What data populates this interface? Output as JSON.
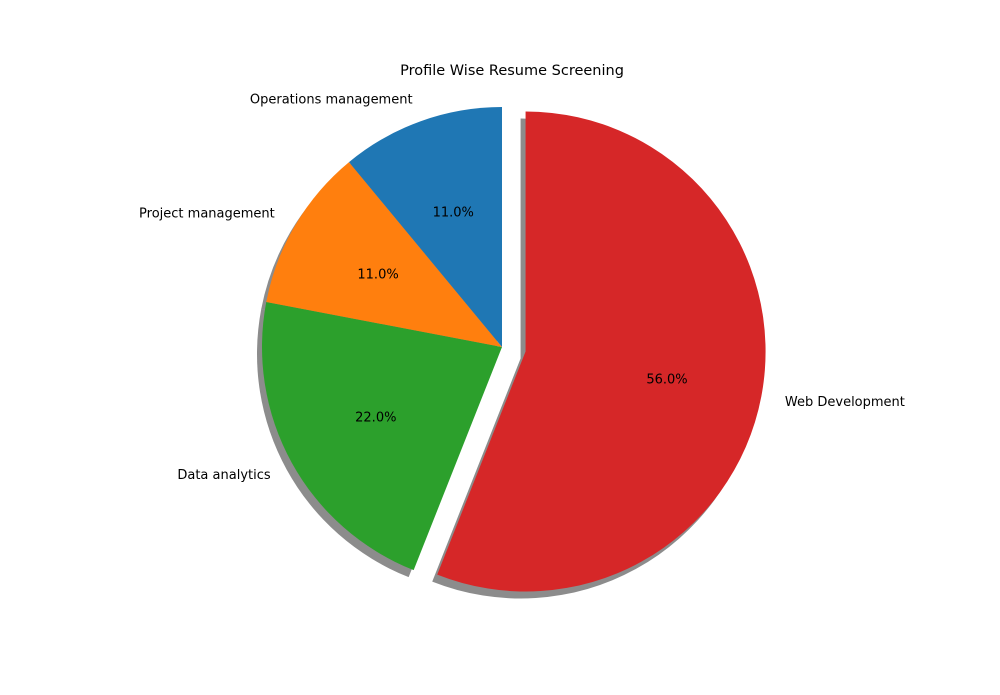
{
  "chart_data": {
    "type": "pie",
    "title": "Profile Wise Resume Screening",
    "categories": [
      "Web Development",
      "Data analytics",
      "Project management",
      "Operations management"
    ],
    "values": [
      56.0,
      22.0,
      11.0,
      11.0
    ],
    "percent_labels": [
      "56.0%",
      "22.0%",
      "11.0%",
      "11.0%"
    ],
    "colors": [
      "#d62728",
      "#2ca02c",
      "#ff7f0e",
      "#1f77b4"
    ],
    "exploded": [
      "Web Development"
    ],
    "shadow": true,
    "legend": "none"
  }
}
